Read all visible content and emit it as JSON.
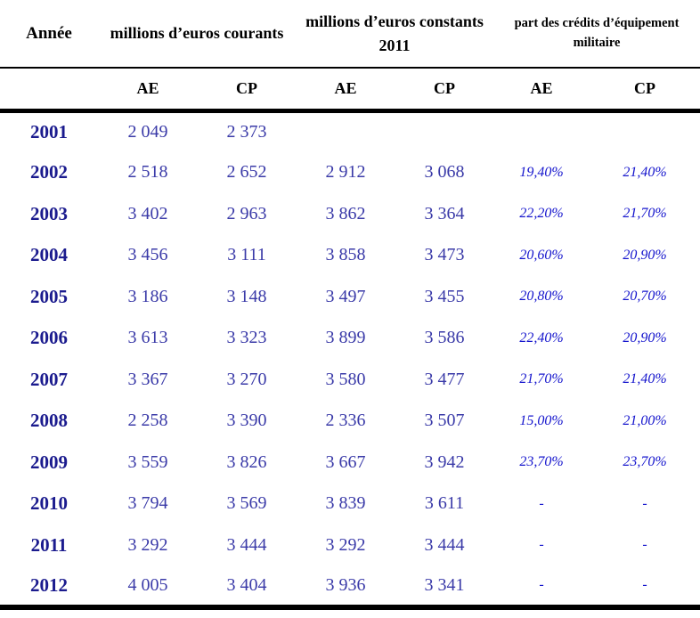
{
  "table": {
    "header": {
      "year_label": "Année",
      "group1": "millions d’euros courants",
      "group2": "millions d’euros constants 2011",
      "group3": "part des crédits d’équipement militaire",
      "subheaders": [
        "AE",
        "CP",
        "AE",
        "CP",
        "AE",
        "CP"
      ]
    },
    "rows": [
      {
        "year": "2001",
        "courants_ae": "2 049",
        "courants_cp": "2 373",
        "constants_ae": "",
        "constants_cp": "",
        "part_ae": "",
        "part_cp": ""
      },
      {
        "year": "2002",
        "courants_ae": "2 518",
        "courants_cp": "2 652",
        "constants_ae": "2 912",
        "constants_cp": "3 068",
        "part_ae": "19,40%",
        "part_cp": "21,40%"
      },
      {
        "year": "2003",
        "courants_ae": "3 402",
        "courants_cp": "2 963",
        "constants_ae": "3 862",
        "constants_cp": "3 364",
        "part_ae": "22,20%",
        "part_cp": "21,70%"
      },
      {
        "year": "2004",
        "courants_ae": "3 456",
        "courants_cp": "3 111",
        "constants_ae": "3 858",
        "constants_cp": "3 473",
        "part_ae": "20,60%",
        "part_cp": "20,90%"
      },
      {
        "year": "2005",
        "courants_ae": "3 186",
        "courants_cp": "3 148",
        "constants_ae": "3 497",
        "constants_cp": "3 455",
        "part_ae": "20,80%",
        "part_cp": "20,70%"
      },
      {
        "year": "2006",
        "courants_ae": "3 613",
        "courants_cp": "3 323",
        "constants_ae": "3 899",
        "constants_cp": "3 586",
        "part_ae": "22,40%",
        "part_cp": "20,90%"
      },
      {
        "year": "2007",
        "courants_ae": "3 367",
        "courants_cp": "3 270",
        "constants_ae": "3 580",
        "constants_cp": "3 477",
        "part_ae": "21,70%",
        "part_cp": "21,40%"
      },
      {
        "year": "2008",
        "courants_ae": "2 258",
        "courants_cp": "3 390",
        "constants_ae": "2 336",
        "constants_cp": "3 507",
        "part_ae": "15,00%",
        "part_cp": "21,00%"
      },
      {
        "year": "2009",
        "courants_ae": "3 559",
        "courants_cp": "3 826",
        "constants_ae": "3 667",
        "constants_cp": "3 942",
        "part_ae": "23,70%",
        "part_cp": "23,70%"
      },
      {
        "year": "2010",
        "courants_ae": "3 794",
        "courants_cp": "3 569",
        "constants_ae": "3 839",
        "constants_cp": "3 611",
        "part_ae": "-",
        "part_cp": "-"
      },
      {
        "year": "2011",
        "courants_ae": "3 292",
        "courants_cp": "3 444",
        "constants_ae": "3 292",
        "constants_cp": "3 444",
        "part_ae": "-",
        "part_cp": "-"
      },
      {
        "year": "2012",
        "courants_ae": "4 005",
        "courants_cp": "3 404",
        "constants_ae": "3 936",
        "constants_cp": "3 341",
        "part_ae": "-",
        "part_cp": "-"
      }
    ]
  },
  "colors": {
    "year_text": "#1b1b8e",
    "value_text": "#3a3aa8",
    "percent_text": "#1515cd",
    "rule": "#000000"
  },
  "chart_data": {
    "type": "table",
    "title": "Crédits d’équipement militaire par année",
    "columns": [
      "Année",
      "millions d’euros courants AE",
      "millions d’euros courants CP",
      "millions d’euros constants 2011 AE",
      "millions d’euros constants 2011 CP",
      "part des crédits d’équipement militaire AE (%)",
      "part des crédits d’équipement militaire CP (%)"
    ],
    "rows": [
      [
        2001,
        2049,
        2373,
        null,
        null,
        null,
        null
      ],
      [
        2002,
        2518,
        2652,
        2912,
        3068,
        19.4,
        21.4
      ],
      [
        2003,
        3402,
        2963,
        3862,
        3364,
        22.2,
        21.7
      ],
      [
        2004,
        3456,
        3111,
        3858,
        3473,
        20.6,
        20.9
      ],
      [
        2005,
        3186,
        3148,
        3497,
        3455,
        20.8,
        20.7
      ],
      [
        2006,
        3613,
        3323,
        3899,
        3586,
        22.4,
        20.9
      ],
      [
        2007,
        3367,
        3270,
        3580,
        3477,
        21.7,
        21.4
      ],
      [
        2008,
        2258,
        3390,
        2336,
        3507,
        15.0,
        21.0
      ],
      [
        2009,
        3559,
        3826,
        3667,
        3942,
        23.7,
        23.7
      ],
      [
        2010,
        3794,
        3569,
        3839,
        3611,
        null,
        null
      ],
      [
        2011,
        3292,
        3444,
        3292,
        3444,
        null,
        null
      ],
      [
        2012,
        4005,
        3404,
        3936,
        3341,
        null,
        null
      ]
    ]
  }
}
